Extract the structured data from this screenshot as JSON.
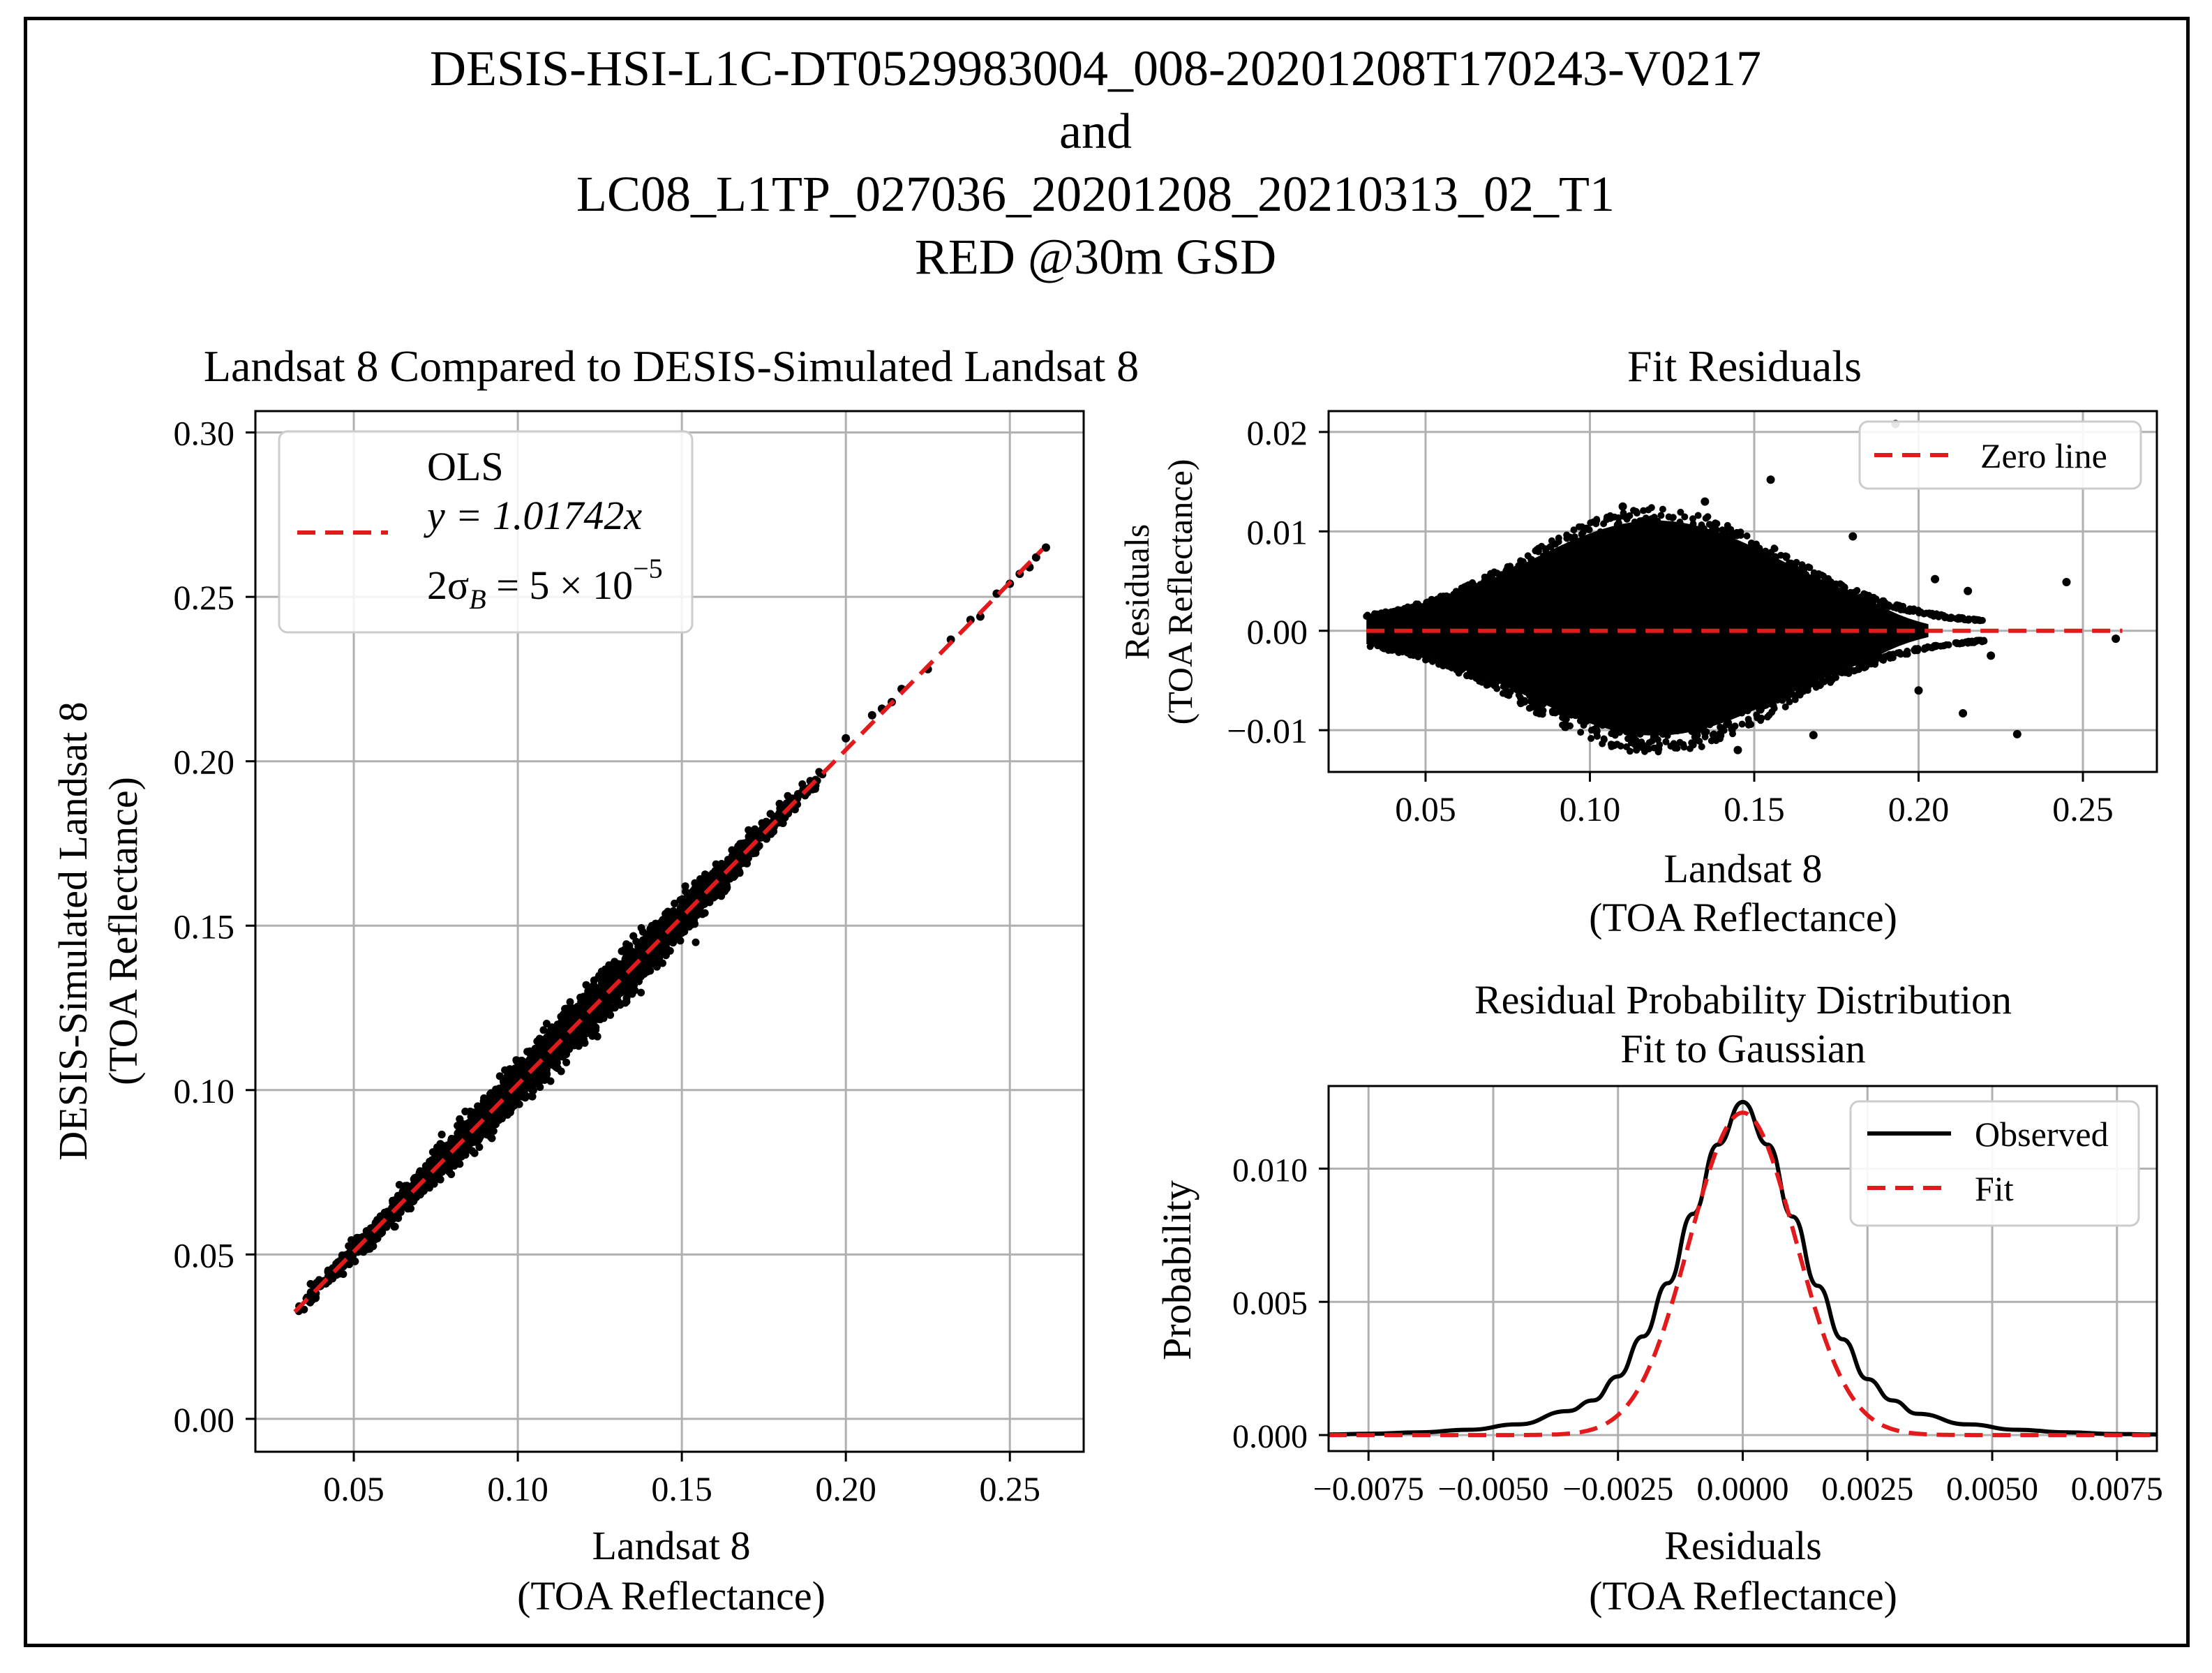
{
  "figure": {
    "title_lines": [
      "DESIS-HSI-L1C-DT0529983004_008-20201208T170243-V0217",
      "and",
      "LC08_L1TP_027036_20201208_20210313_02_T1",
      "RED @30m GSD"
    ]
  },
  "colors": {
    "points": "#000000",
    "fit_line": "#e31a1c",
    "grid": "#b0b0b0",
    "frame": "#000000"
  },
  "chart_data": [
    {
      "type": "scatter",
      "title": "Landsat 8 Compared to DESIS-Simulated Landsat 8",
      "xlabel_lines": [
        "Landsat 8",
        "(TOA Reflectance)"
      ],
      "ylabel_lines": [
        "DESIS-Simulated Landsat 8",
        "(TOA Reflectance)"
      ],
      "xlim": [
        0.02,
        0.2725
      ],
      "ylim": [
        -0.01,
        0.3065
      ],
      "xticks": [
        0.05,
        0.1,
        0.15,
        0.2,
        0.25
      ],
      "xtick_labels": [
        "0.05",
        "0.10",
        "0.15",
        "0.20",
        "0.25"
      ],
      "yticks": [
        0.0,
        0.05,
        0.1,
        0.15,
        0.2,
        0.25,
        0.3
      ],
      "ytick_labels": [
        "0.00",
        "0.05",
        "0.10",
        "0.15",
        "0.20",
        "0.25",
        "0.30"
      ],
      "grid": true,
      "legend_position": "upper-left",
      "legend": {
        "line1": "OLS",
        "line2": "y = 1.01742x",
        "line3_prefix": "2σ",
        "line3_sub": "B",
        "line3_mid": " = 5 × 10",
        "line3_sup": "−5"
      },
      "fit": {
        "slope": 1.01742,
        "x_range": [
          0.032,
          0.26
        ]
      },
      "point_cloud": {
        "x_range": [
          0.032,
          0.261
        ],
        "density_peak_x": 0.12,
        "spread_at_peak": 0.006
      },
      "sparse_points": [
        [
          0.225,
          0.228
        ],
        [
          0.232,
          0.237
        ],
        [
          0.238,
          0.243
        ],
        [
          0.241,
          0.244
        ],
        [
          0.246,
          0.251
        ],
        [
          0.25,
          0.254
        ],
        [
          0.253,
          0.257
        ],
        [
          0.256,
          0.259
        ],
        [
          0.258,
          0.262
        ],
        [
          0.261,
          0.265
        ],
        [
          0.214,
          0.218
        ],
        [
          0.217,
          0.222
        ],
        [
          0.211,
          0.216
        ],
        [
          0.208,
          0.214
        ],
        [
          0.2,
          0.207
        ]
      ]
    },
    {
      "type": "scatter",
      "title": "Fit Residuals",
      "xlabel_lines": [
        "Landsat 8",
        "(TOA Reflectance)"
      ],
      "ylabel_lines": [
        "Residuals",
        "(TOA Reflectance)"
      ],
      "xlim": [
        0.0205,
        0.2725
      ],
      "ylim": [
        -0.0142,
        0.0221
      ],
      "xticks": [
        0.05,
        0.1,
        0.15,
        0.2,
        0.25
      ],
      "xtick_labels": [
        "0.05",
        "0.10",
        "0.15",
        "0.20",
        "0.25"
      ],
      "yticks": [
        -0.01,
        0.0,
        0.01,
        0.02
      ],
      "ytick_labels": [
        "−0.01",
        "0.00",
        "0.01",
        "0.02"
      ],
      "grid": true,
      "legend_position": "upper-right",
      "legend": {
        "zero_line": "Zero line"
      },
      "zero_line": {
        "y": 0,
        "x_range": [
          0.032,
          0.262
        ]
      },
      "envelope": {
        "x_range": [
          0.032,
          0.205
        ],
        "peak_x": 0.12,
        "peak_amplitude": 0.0105
      },
      "outliers": [
        [
          0.155,
          0.0152
        ],
        [
          0.193,
          0.0208
        ],
        [
          0.2135,
          -0.0083
        ],
        [
          0.23,
          -0.0104
        ],
        [
          0.245,
          0.0049
        ],
        [
          0.26,
          -0.0008
        ],
        [
          0.222,
          -0.0025
        ],
        [
          0.215,
          0.004
        ],
        [
          0.205,
          0.0052
        ],
        [
          0.2,
          -0.006
        ],
        [
          0.168,
          -0.0105
        ],
        [
          0.135,
          0.013
        ],
        [
          0.11,
          0.0125
        ],
        [
          0.18,
          0.0095
        ],
        [
          0.145,
          -0.012
        ]
      ]
    },
    {
      "type": "line",
      "title_lines": [
        "Residual Probability Distribution",
        "Fit to Gaussian"
      ],
      "xlabel_lines": [
        "Residuals",
        "(TOA Reflectance)"
      ],
      "ylabel": "Probability",
      "xlim": [
        -0.0083,
        0.0083
      ],
      "ylim": [
        -0.0006,
        0.0131
      ],
      "xticks": [
        -0.0075,
        -0.005,
        -0.0025,
        0.0,
        0.0025,
        0.005,
        0.0075
      ],
      "xtick_labels": [
        "−0.0075",
        "−0.0050",
        "−0.0025",
        "0.0000",
        "0.0025",
        "0.0050",
        "0.0075"
      ],
      "yticks": [
        0.0,
        0.005,
        0.01
      ],
      "ytick_labels": [
        "0.000",
        "0.005",
        "0.010"
      ],
      "grid": true,
      "legend_position": "upper-right",
      "series": [
        {
          "name": "Observed",
          "style": "solid",
          "x": [
            -0.0083,
            -0.0075,
            -0.0065,
            -0.0055,
            -0.0045,
            -0.0035,
            -0.003,
            -0.0025,
            -0.002,
            -0.0015,
            -0.001,
            -0.0005,
            0.0,
            0.0005,
            0.001,
            0.0015,
            0.002,
            0.0025,
            0.003,
            0.0035,
            0.0045,
            0.0055,
            0.0065,
            0.0075,
            0.0083
          ],
          "y": [
            2e-05,
            5e-05,
            0.0001,
            0.0002,
            0.0004,
            0.0009,
            0.0013,
            0.0022,
            0.0037,
            0.0057,
            0.0083,
            0.0109,
            0.0125,
            0.0109,
            0.0082,
            0.0056,
            0.0036,
            0.0021,
            0.0013,
            0.0008,
            0.0004,
            0.0002,
            0.0001,
            4e-05,
            2e-05
          ]
        },
        {
          "name": "Fit",
          "style": "dashed",
          "mu": 0.0,
          "sigma": 0.00106,
          "peak": 0.0121
        }
      ]
    }
  ]
}
